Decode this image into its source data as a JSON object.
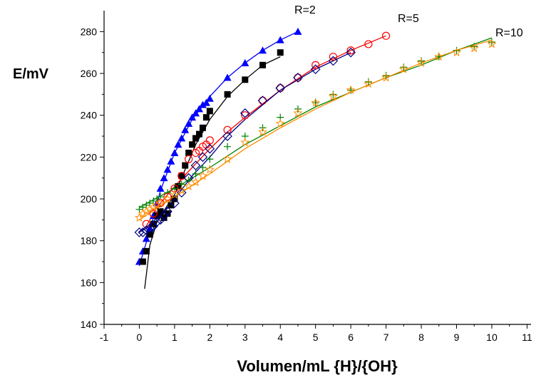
{
  "chart_data": {
    "type": "scatter",
    "title": "",
    "xlabel": "Volumen/mL {H}/{OH}",
    "ylabel": "E/mV",
    "xlim": [
      -1,
      11
    ],
    "ylim": [
      140,
      285
    ],
    "xticks": [
      "-1",
      "0",
      "1",
      "2",
      "3",
      "4",
      "5",
      "6",
      "7",
      "8",
      "9",
      "10",
      "11"
    ],
    "yticks": [
      "140",
      "160",
      "180",
      "200",
      "220",
      "240",
      "260",
      "280"
    ],
    "grid": false,
    "annotations": [
      {
        "text": "R=2",
        "x": 5.6,
        "y": 289
      },
      {
        "text": "R=5",
        "x": 8.1,
        "y": 283
      },
      {
        "text": "R=10",
        "x": 10.9,
        "y": 277
      }
    ],
    "series": [
      {
        "marker": "triangle-filled",
        "color": "#0000ff",
        "x": [
          0.0,
          0.1,
          0.2,
          0.3,
          0.4,
          0.5,
          0.6,
          0.7,
          0.8,
          0.9,
          1.0,
          1.1,
          1.2,
          1.3,
          1.4,
          1.5,
          1.6,
          1.7,
          1.8,
          1.9,
          2.0,
          2.5,
          3.0,
          3.5,
          4.0,
          4.5
        ],
        "y": [
          170,
          175,
          181,
          186,
          192,
          198,
          205,
          210,
          214,
          218,
          222,
          226,
          229,
          233,
          236,
          239,
          241,
          243,
          245,
          246,
          248,
          258,
          265,
          271,
          276,
          280
        ]
      },
      {
        "marker": "square-filled",
        "color": "#000000",
        "x": [
          0.1,
          0.2,
          0.3,
          0.4,
          0.5,
          0.6,
          0.7,
          0.8,
          0.9,
          1.0,
          1.1,
          1.2,
          1.3,
          1.4,
          1.5,
          1.6,
          1.7,
          1.8,
          1.9,
          2.0,
          2.5,
          3.0,
          3.5,
          4.0
        ],
        "y": [
          170,
          175,
          183,
          188,
          192,
          194,
          191,
          193,
          197,
          200,
          206,
          211,
          216,
          222,
          226,
          229,
          231,
          234,
          239,
          242,
          250,
          257,
          264,
          270
        ]
      },
      {
        "marker": "circle-open",
        "color": "#ff0000",
        "x": [
          0.2,
          0.4,
          0.6,
          0.8,
          1.0,
          1.2,
          1.4,
          1.6,
          1.7,
          1.8,
          1.9,
          2.0,
          2.5,
          3.0,
          3.5,
          4.0,
          4.5,
          5.0,
          5.5,
          6.0,
          6.5,
          7.0
        ],
        "y": [
          188,
          193,
          198,
          201,
          205,
          211,
          219,
          222,
          223,
          225,
          226,
          228,
          233,
          240,
          247,
          253,
          258,
          264,
          268,
          271,
          274,
          278
        ]
      },
      {
        "marker": "diamond-open",
        "color": "#000080",
        "x": [
          0.0,
          0.1,
          0.2,
          0.3,
          0.4,
          0.5,
          0.6,
          0.7,
          0.8,
          1.0,
          1.2,
          1.4,
          1.6,
          1.8,
          2.0,
          2.5,
          3.0,
          3.5,
          4.0,
          4.5,
          5.0,
          5.5,
          6.0
        ],
        "y": [
          184,
          184,
          185,
          186,
          187,
          189,
          190,
          192,
          194,
          198,
          203,
          210,
          216,
          220,
          224,
          230,
          241,
          247,
          253,
          258,
          262,
          266,
          270
        ]
      },
      {
        "marker": "plus",
        "color": "#008000",
        "x": [
          0.0,
          0.1,
          0.2,
          0.3,
          0.4,
          0.5,
          0.6,
          0.8,
          1.0,
          1.2,
          1.4,
          1.6,
          1.8,
          2.0,
          2.5,
          3.0,
          3.5,
          4.0,
          4.5,
          5.0,
          5.5,
          6.0,
          6.5,
          7.0,
          7.5,
          8.0,
          8.5,
          9.0,
          9.5,
          10.0
        ],
        "y": [
          195,
          196,
          197,
          198,
          199,
          200,
          201,
          203,
          205,
          207,
          209,
          212,
          215,
          219,
          225,
          230,
          234,
          239,
          243,
          246,
          250,
          252,
          256,
          259,
          263,
          266,
          268,
          271,
          273,
          275
        ]
      },
      {
        "marker": "star-open",
        "color": "#ff8c00",
        "x": [
          0.0,
          0.1,
          0.2,
          0.3,
          0.4,
          0.5,
          0.6,
          0.8,
          1.0,
          1.2,
          1.4,
          1.6,
          1.8,
          2.0,
          2.5,
          3.0,
          3.5,
          4.0,
          4.5,
          5.0,
          5.5,
          6.0,
          6.5,
          7.0,
          7.5,
          8.0,
          8.5,
          9.0,
          9.5,
          10.0
        ],
        "y": [
          191,
          193,
          194,
          195,
          196,
          197,
          198,
          200,
          202,
          204,
          206,
          208,
          211,
          214,
          219,
          227,
          232,
          236,
          241,
          246,
          249,
          252,
          255,
          258,
          262,
          265,
          268,
          270,
          272,
          274
        ]
      }
    ],
    "fits": [
      {
        "color": "#0000ff",
        "x": [
          0.0,
          0.3,
          0.6,
          1.0,
          1.5,
          2.0,
          2.5,
          3.0,
          3.5,
          4.0,
          4.5
        ],
        "y": [
          168,
          185,
          204,
          222,
          238,
          249,
          258,
          265,
          271,
          276,
          280
        ]
      },
      {
        "color": "#000000",
        "x": [
          0.15,
          0.3,
          0.5,
          0.8,
          1.0,
          1.3,
          1.6,
          2.0,
          2.5,
          3.0,
          3.5,
          4.0
        ],
        "y": [
          157,
          178,
          189,
          197,
          202,
          214,
          226,
          238,
          249,
          257,
          264,
          268
        ]
      },
      {
        "color": "#ff0000",
        "x": [
          0.2,
          0.5,
          1.0,
          1.5,
          2.0,
          2.5,
          3.0,
          4.0,
          5.0,
          6.0,
          7.0
        ],
        "y": [
          187,
          196,
          206,
          215,
          224,
          232,
          239,
          252,
          263,
          271,
          278
        ]
      },
      {
        "color": "#000080",
        "x": [
          0.0,
          0.5,
          1.0,
          1.5,
          2.0,
          2.5,
          3.0,
          4.0,
          5.0,
          6.0
        ],
        "y": [
          184,
          189,
          200,
          211,
          220,
          230,
          238,
          252,
          262,
          270
        ]
      },
      {
        "color": "#008000",
        "x": [
          0.0,
          1.0,
          2.0,
          3.0,
          4.0,
          5.0,
          6.0,
          7.0,
          8.0,
          9.0,
          10.0
        ],
        "y": [
          196,
          205,
          215,
          226,
          235,
          244,
          251,
          258,
          264,
          271,
          277
        ]
      },
      {
        "color": "#ff8c00",
        "x": [
          0.0,
          1.0,
          2.0,
          3.0,
          4.0,
          5.0,
          6.0,
          7.0,
          8.0,
          9.0,
          10.0
        ],
        "y": [
          190,
          201,
          212,
          224,
          234,
          243,
          251,
          258,
          265,
          271,
          276
        ]
      }
    ]
  }
}
